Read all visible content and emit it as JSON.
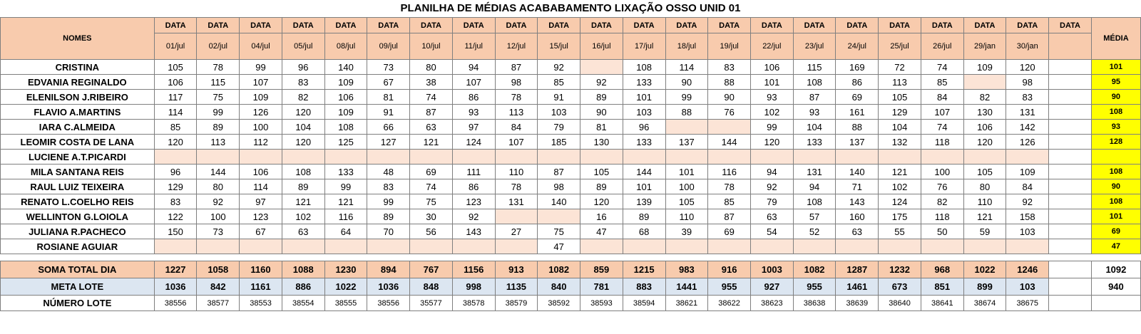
{
  "title": "PLANILHA DE MÉDIAS ACABABAMENTO LIXAÇÃO OSSO UNID 01",
  "header": {
    "names": "NOMES",
    "data_label": "DATA",
    "media": "MÉDIA",
    "dates": [
      "01/jul",
      "02/jul",
      "04/jul",
      "05/jul",
      "08/jul",
      "09/jul",
      "10/jul",
      "11/jul",
      "12/jul",
      "15/jul",
      "16/jul",
      "17/jul",
      "18/jul",
      "19/jul",
      "22/jul",
      "23/jul",
      "24/jul",
      "25/jul",
      "26/jul",
      "29/jan",
      "30/jan",
      ""
    ]
  },
  "rows": [
    {
      "name": "CRISTINA",
      "values": [
        "105",
        "78",
        "99",
        "96",
        "140",
        "73",
        "80",
        "94",
        "87",
        "92",
        "",
        "108",
        "114",
        "83",
        "106",
        "115",
        "169",
        "72",
        "74",
        "109",
        "120",
        ""
      ],
      "avg": "101"
    },
    {
      "name": "EDVANIA REGINALDO",
      "values": [
        "106",
        "115",
        "107",
        "83",
        "109",
        "67",
        "38",
        "107",
        "98",
        "85",
        "92",
        "133",
        "90",
        "88",
        "101",
        "108",
        "86",
        "113",
        "85",
        "",
        "98",
        ""
      ],
      "avg": "95"
    },
    {
      "name": "ELENILSON J.RIBEIRO",
      "values": [
        "117",
        "75",
        "109",
        "82",
        "106",
        "81",
        "74",
        "86",
        "78",
        "91",
        "89",
        "101",
        "99",
        "90",
        "93",
        "87",
        "69",
        "105",
        "84",
        "82",
        "83",
        ""
      ],
      "avg": "90"
    },
    {
      "name": "FLAVIO A.MARTINS",
      "values": [
        "114",
        "99",
        "126",
        "120",
        "109",
        "91",
        "87",
        "93",
        "113",
        "103",
        "90",
        "103",
        "88",
        "76",
        "102",
        "93",
        "161",
        "129",
        "107",
        "130",
        "131",
        ""
      ],
      "avg": "108"
    },
    {
      "name": "IARA C.ALMEIDA",
      "values": [
        "85",
        "89",
        "100",
        "104",
        "108",
        "66",
        "63",
        "97",
        "84",
        "79",
        "81",
        "96",
        "",
        "",
        "99",
        "104",
        "88",
        "104",
        "74",
        "106",
        "142",
        ""
      ],
      "avg": "93"
    },
    {
      "name": "LEOMIR COSTA DE LANA",
      "values": [
        "120",
        "113",
        "112",
        "120",
        "125",
        "127",
        "121",
        "124",
        "107",
        "185",
        "130",
        "133",
        "137",
        "144",
        "120",
        "133",
        "137",
        "132",
        "118",
        "120",
        "126",
        ""
      ],
      "avg": "128"
    },
    {
      "name": "LUCIENE A.T.PICARDI",
      "values": [
        "",
        "",
        "",
        "",
        "",
        "",
        "",
        "",
        "",
        "",
        "",
        "",
        "",
        "",
        "",
        "",
        "",
        "",
        "",
        "",
        "",
        ""
      ],
      "avg": ""
    },
    {
      "name": "MILA SANTANA REIS",
      "values": [
        "96",
        "144",
        "106",
        "108",
        "133",
        "48",
        "69",
        "111",
        "110",
        "87",
        "105",
        "144",
        "101",
        "116",
        "94",
        "131",
        "140",
        "121",
        "100",
        "105",
        "109",
        ""
      ],
      "avg": "108"
    },
    {
      "name": "RAUL LUIZ TEIXEIRA",
      "values": [
        "129",
        "80",
        "114",
        "89",
        "99",
        "83",
        "74",
        "86",
        "78",
        "98",
        "89",
        "101",
        "100",
        "78",
        "92",
        "94",
        "71",
        "102",
        "76",
        "80",
        "84",
        ""
      ],
      "avg": "90"
    },
    {
      "name": "RENATO L.COELHO REIS",
      "values": [
        "83",
        "92",
        "97",
        "121",
        "121",
        "99",
        "75",
        "123",
        "131",
        "140",
        "120",
        "139",
        "105",
        "85",
        "79",
        "108",
        "143",
        "124",
        "82",
        "110",
        "92",
        ""
      ],
      "avg": "108"
    },
    {
      "name": "WELLINTON G.LOIOLA",
      "values": [
        "122",
        "100",
        "123",
        "102",
        "116",
        "89",
        "30",
        "92",
        "",
        "",
        "16",
        "89",
        "110",
        "87",
        "63",
        "57",
        "160",
        "175",
        "118",
        "121",
        "158",
        ""
      ],
      "avg": "101"
    },
    {
      "name": "JULIANA R.PACHECO",
      "values": [
        "150",
        "73",
        "67",
        "63",
        "64",
        "70",
        "56",
        "143",
        "27",
        "75",
        "47",
        "68",
        "39",
        "69",
        "54",
        "52",
        "63",
        "55",
        "50",
        "59",
        "103",
        ""
      ],
      "avg": "69"
    },
    {
      "name": "ROSIANE AGUIAR",
      "values": [
        "",
        "",
        "",
        "",
        "",
        "",
        "",
        "",
        "",
        "47",
        "",
        "",
        "",
        "",
        "",
        "",
        "",
        "",
        "",
        "",
        "",
        ""
      ],
      "avg": "47"
    }
  ],
  "soma": {
    "label": "SOMA TOTAL DIA",
    "values": [
      "1227",
      "1058",
      "1160",
      "1088",
      "1230",
      "894",
      "767",
      "1156",
      "913",
      "1082",
      "859",
      "1215",
      "983",
      "916",
      "1003",
      "1082",
      "1287",
      "1232",
      "968",
      "1022",
      "1246",
      ""
    ],
    "total": "1092"
  },
  "meta": {
    "label": "META LOTE",
    "values": [
      "1036",
      "842",
      "1161",
      "886",
      "1022",
      "1036",
      "848",
      "998",
      "1135",
      "840",
      "781",
      "883",
      "1441",
      "955",
      "927",
      "955",
      "1461",
      "673",
      "851",
      "899",
      "103",
      ""
    ],
    "total": "940"
  },
  "lote": {
    "label": "NÚMERO LOTE",
    "values": [
      "38556",
      "38577",
      "38553",
      "38554",
      "38555",
      "38556",
      "35577",
      "38578",
      "38579",
      "38592",
      "38593",
      "38594",
      "38621",
      "38622",
      "38623",
      "38638",
      "38639",
      "38640",
      "38641",
      "38674",
      "38675",
      ""
    ],
    "total": ""
  }
}
